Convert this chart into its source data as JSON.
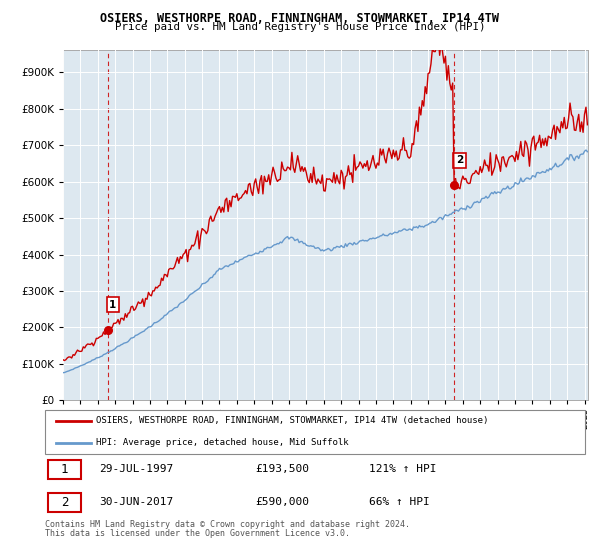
{
  "title": "OSIERS, WESTHORPE ROAD, FINNINGHAM, STOWMARKET, IP14 4TW",
  "subtitle": "Price paid vs. HM Land Registry's House Price Index (HPI)",
  "ytick_values": [
    0,
    100000,
    200000,
    300000,
    400000,
    500000,
    600000,
    700000,
    800000,
    900000
  ],
  "ylim": [
    0,
    960000
  ],
  "xlim_start": 1995.0,
  "xlim_end": 2025.2,
  "sale1_x": 1997.57,
  "sale1_y": 193500,
  "sale2_x": 2017.5,
  "sale2_y": 590000,
  "legend_property": "OSIERS, WESTHORPE ROAD, FINNINGHAM, STOWMARKET, IP14 4TW (detached house)",
  "legend_hpi": "HPI: Average price, detached house, Mid Suffolk",
  "footnote1": "Contains HM Land Registry data © Crown copyright and database right 2024.",
  "footnote2": "This data is licensed under the Open Government Licence v3.0.",
  "property_color": "#cc0000",
  "hpi_color": "#6699cc",
  "background_color": "#dde8f0",
  "plot_bg": "#dde8f0",
  "grid_color": "#ffffff"
}
